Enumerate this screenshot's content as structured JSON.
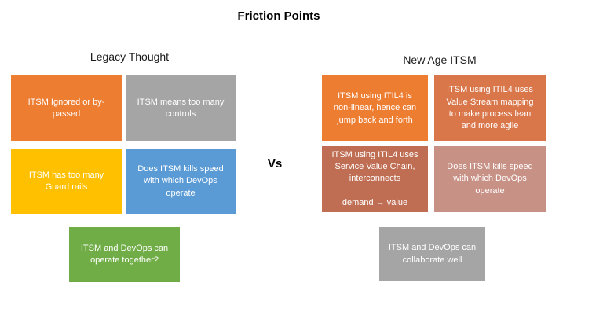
{
  "title": "Friction Points",
  "vs_label": "Vs",
  "colors": {
    "orange": "#ED7D31",
    "gray": "#A5A5A5",
    "yellow": "#FFC000",
    "blue": "#5B9BD5",
    "green": "#70AD47",
    "terracotta": "#D9764A",
    "brick": "#BF6E54",
    "rose": "#C89185"
  },
  "left": {
    "heading": "Legacy Thought",
    "boxes": [
      {
        "label": "ITSM Ignored or by-passed",
        "color": "#ED7D31"
      },
      {
        "label": "ITSM means too many controls",
        "color": "#A5A5A5"
      },
      {
        "label": "ITSM has too many Guard rails",
        "color": "#FFC000"
      },
      {
        "label": "Does ITSM kills speed with which DevOps operate",
        "color": "#5B9BD5"
      },
      {
        "label": "ITSM and DevOps can operate together?",
        "color": "#70AD47"
      }
    ]
  },
  "right": {
    "heading": "New Age ITSM",
    "boxes": [
      {
        "label": "ITSM using ITIL4 is non-linear, hence can jump back and forth",
        "color": "#ED7D31"
      },
      {
        "label": "ITSM using ITIL4 uses Value Stream mapping to make process lean and more agile",
        "color": "#D9764A"
      },
      {
        "label": "ITSM using ITIL4 uses Service Value Chain, interconnects\n\ndemand → value",
        "color": "#BF6E54"
      },
      {
        "label": "Does ITSM kills speed with which DevOps operate",
        "color": "#C89185"
      },
      {
        "label": "ITSM and DevOps can collaborate well",
        "color": "#A5A5A5"
      }
    ]
  }
}
